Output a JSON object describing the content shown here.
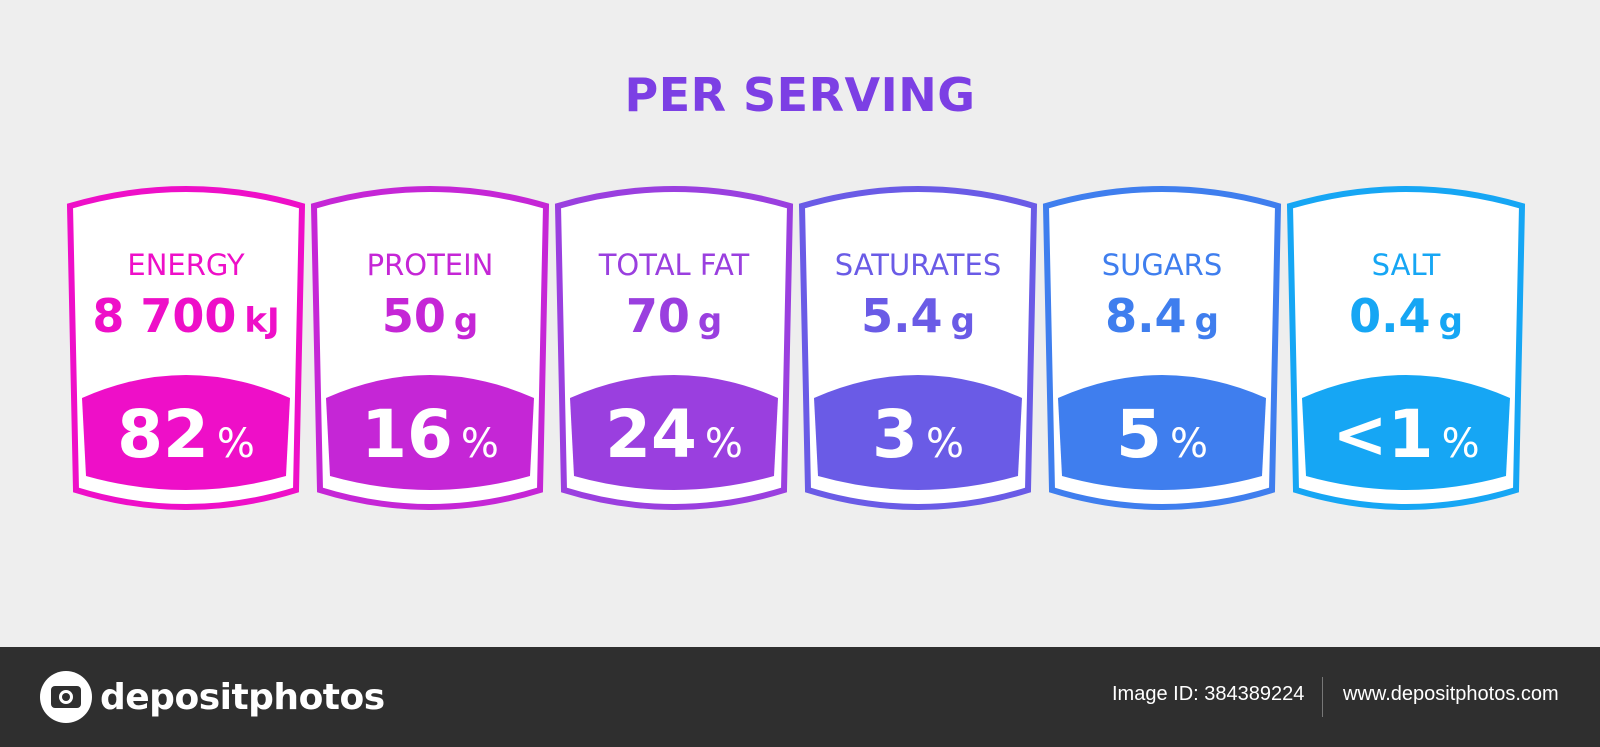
{
  "header": {
    "title": "PER SERVING"
  },
  "labels": [
    {
      "name": "ENERGY",
      "amount": "8 700",
      "unit": "kJ",
      "percent": "82",
      "percent_symbol": "%",
      "color": "#ee0fc8"
    },
    {
      "name": "PROTEIN",
      "amount": "50",
      "unit": "g",
      "percent": "16",
      "percent_symbol": "%",
      "color": "#c526d6"
    },
    {
      "name": "TOTAL FAT",
      "amount": "70",
      "unit": "g",
      "percent": "24",
      "percent_symbol": "%",
      "color": "#9a3fdf"
    },
    {
      "name": "SATURATES",
      "amount": "5.4",
      "unit": "g",
      "percent": "3",
      "percent_symbol": "%",
      "color": "#6a5be6"
    },
    {
      "name": "SUGARS",
      "amount": "8.4",
      "unit": "g",
      "percent": "5",
      "percent_symbol": "%",
      "color": "#3f7eee"
    },
    {
      "name": "SALT",
      "amount": "0.4",
      "unit": "g",
      "percent": "<1",
      "percent_symbol": "%",
      "color": "#16a6f4"
    }
  ],
  "footer": {
    "brand": "depositphotos",
    "image_id_label": "Image ID:",
    "image_id": "384389224",
    "url": "www.depositphotos.com"
  },
  "colors": {
    "title": "#7c3fe4",
    "background": "#eeeeee",
    "footer": "#2f2f2f"
  }
}
